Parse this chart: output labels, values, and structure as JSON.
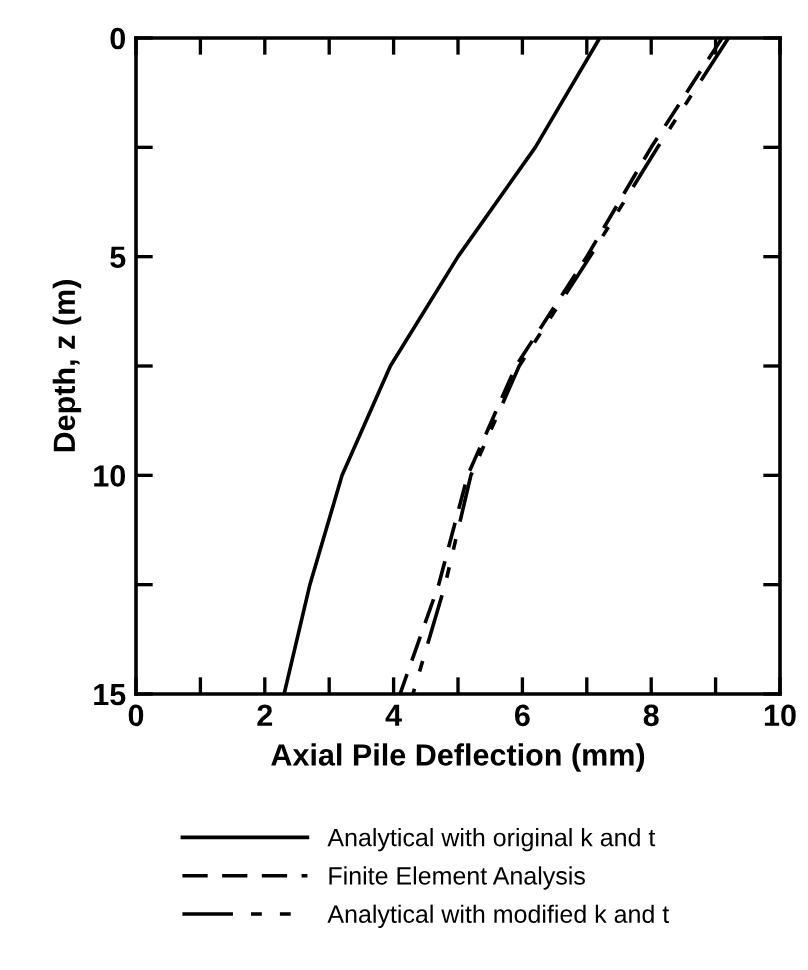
{
  "chart_data": {
    "type": "line",
    "xlabel": "Axial Pile Deflection (mm)",
    "ylabel": "Depth, z (m)",
    "x": [
      0,
      2.5,
      5,
      7.5,
      10,
      12.5,
      15
    ],
    "series": [
      {
        "name": "Analytical with original k and t",
        "color": "#000000",
        "line_style": "solid",
        "values": [
          7.2,
          6.2,
          5.0,
          3.95,
          3.2,
          2.7,
          2.3
        ]
      },
      {
        "name": "Finite Element Analysis",
        "color": "#000000",
        "line_style": "dashed",
        "values": [
          9.1,
          8.0,
          7.0,
          5.9,
          5.15,
          4.7,
          4.1
        ]
      },
      {
        "name": "Analytical with modified k and t",
        "color": "#000000",
        "line_style": "dashdot",
        "values": [
          9.2,
          8.1,
          7.05,
          5.95,
          5.2,
          4.8,
          4.3
        ]
      }
    ],
    "orientation": "horizontal",
    "xlim": [
      0,
      10
    ],
    "xticks": [
      0,
      {
        "value": 1,
        "label": null
      },
      2,
      {
        "value": 3,
        "label": null
      },
      4,
      {
        "value": 5,
        "label": null
      },
      6,
      {
        "value": 7,
        "label": null
      },
      8,
      {
        "value": 9,
        "label": null
      },
      10
    ],
    "ylim": [
      15,
      0
    ],
    "yticks": [
      0,
      {
        "value": 2.5,
        "label": null
      },
      5,
      {
        "value": 7.5,
        "label": null
      },
      10,
      {
        "value": 12.5,
        "label": null
      },
      15
    ],
    "grid": false,
    "legend": "bottom",
    "marker": "none"
  }
}
